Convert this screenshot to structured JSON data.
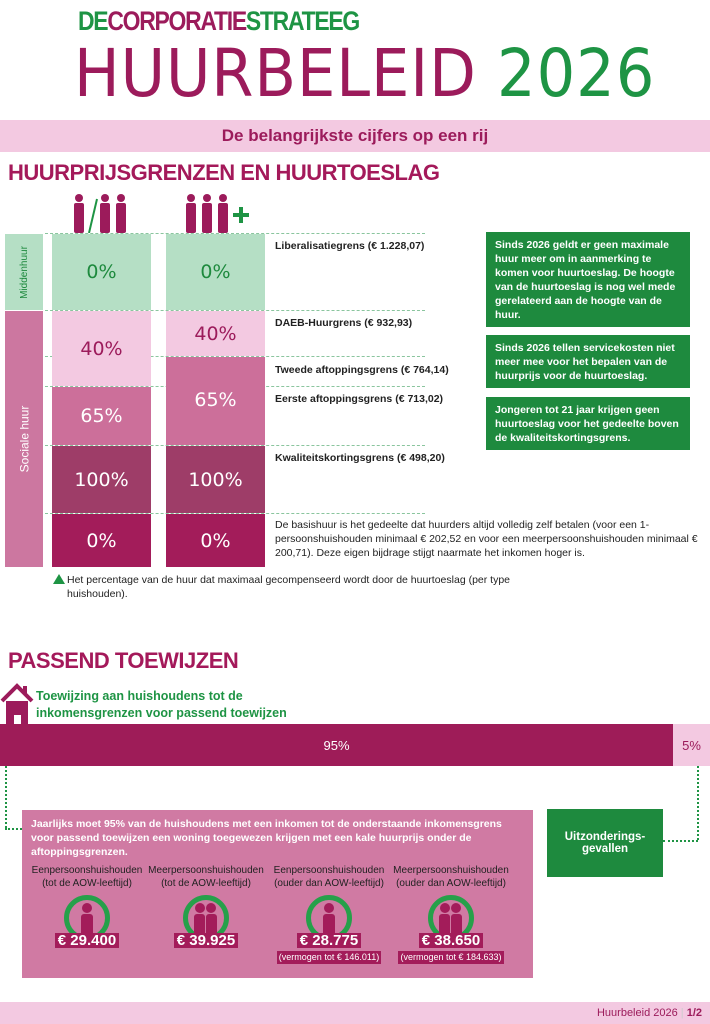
{
  "header": {
    "logo_prefix": "DE",
    "logo_part1": "CORPORATIE",
    "logo_part2": "STRATEEG",
    "title": "HUURBELEID",
    "year": "2026",
    "subtitle": "De belangrijkste cijfers op een rij"
  },
  "section1": {
    "heading": "HUURPRIJSGRENZEN EN HUURTOESLAG",
    "categories": {
      "middenhuur": "Middenhuur",
      "sociale_huur": "Sociale huur"
    },
    "col1": [
      "0%",
      "40%",
      "65%",
      "100%",
      "0%"
    ],
    "col2": [
      "0%",
      "40%",
      "65%",
      "100%",
      "0%"
    ],
    "limits": [
      "Liberalisatiegrens (€ 1.228,07)",
      "DAEB-Huurgrens (€ 932,93)",
      "Tweede aftoppingsgrens (€ 764,14)",
      "Eerste aftoppingsgrens (€ 713,02)",
      "Kwaliteitskortingsgrens (€ 498,20)"
    ],
    "basishuur": "De basishuur is het gedeelte dat huurders altijd volledig zelf betalen (voor een 1-persoonshuishouden minimaal € 202,52  en voor een meerpersoonshuishouden minimaal € 200,71). Deze eigen bijdrage stijgt naarmate het inkomen hoger is.",
    "notes": [
      "Sinds 2026 geldt er geen maximale huur meer om in aanmerking te komen voor huurtoeslag. De hoogte van de huurtoeslag is nog wel mede gerelateerd aan de hoogte van de huur.",
      "Sinds 2026 tellen servicekosten niet meer mee voor het bepalen van de huurprijs voor de huurtoeslag.",
      "Jongeren tot 21 jaar krijgen geen huurtoeslag voor het gedeelte boven de kwaliteitskortingsgrens."
    ],
    "footnote": "Het percentage van de huur dat maximaal gecompenseerd wordt door de huurtoeslag (per type huishouden).",
    "col2_plus": "+"
  },
  "section2": {
    "heading": "PASSEND TOEWIJZEN",
    "intro": "Toewijzing aan huishoudens tot de inkomensgrenzen voor passend toewijzen",
    "bar": {
      "main_label": "95%",
      "main_value": 95,
      "rest_label": "5%",
      "rest_value": 5
    },
    "description": "Jaarlijks moet 95% van de huishoudens met een inkomen tot de onderstaande inkomensgrens voor passend toewijzen een woning toegewezen krijgen met een kale huurprijs onder de aftoppingsgrenzen.",
    "exceptions": "Uitzonderings-gevallen",
    "households": [
      {
        "type": "Eenpersoonshuishouden",
        "age": "(tot de AOW-leeftijd)",
        "amount": "€ 29.400",
        "extra": ""
      },
      {
        "type": "Meerpersoonshuishouden",
        "age": "(tot de AOW-leeftijd)",
        "amount": "€ 39.925",
        "extra": ""
      },
      {
        "type": "Eenpersoonshuishouden",
        "age": "(ouder dan AOW-leeftijd)",
        "amount": "€ 28.775",
        "extra": "(vermogen tot € 146.011)"
      },
      {
        "type": "Meerpersoonshuishouden",
        "age": "(ouder dan AOW-leeftijd)",
        "amount": "€ 38.650",
        "extra": "(vermogen tot € 184.633)"
      }
    ]
  },
  "footer": {
    "title": "Huurbeleid 2026",
    "page": "1/2"
  },
  "colors": {
    "magenta": "#a31c5a",
    "green": "#1e8a3e",
    "light_pink": "#f3c9e1",
    "light_green": "#b5dfc5"
  }
}
